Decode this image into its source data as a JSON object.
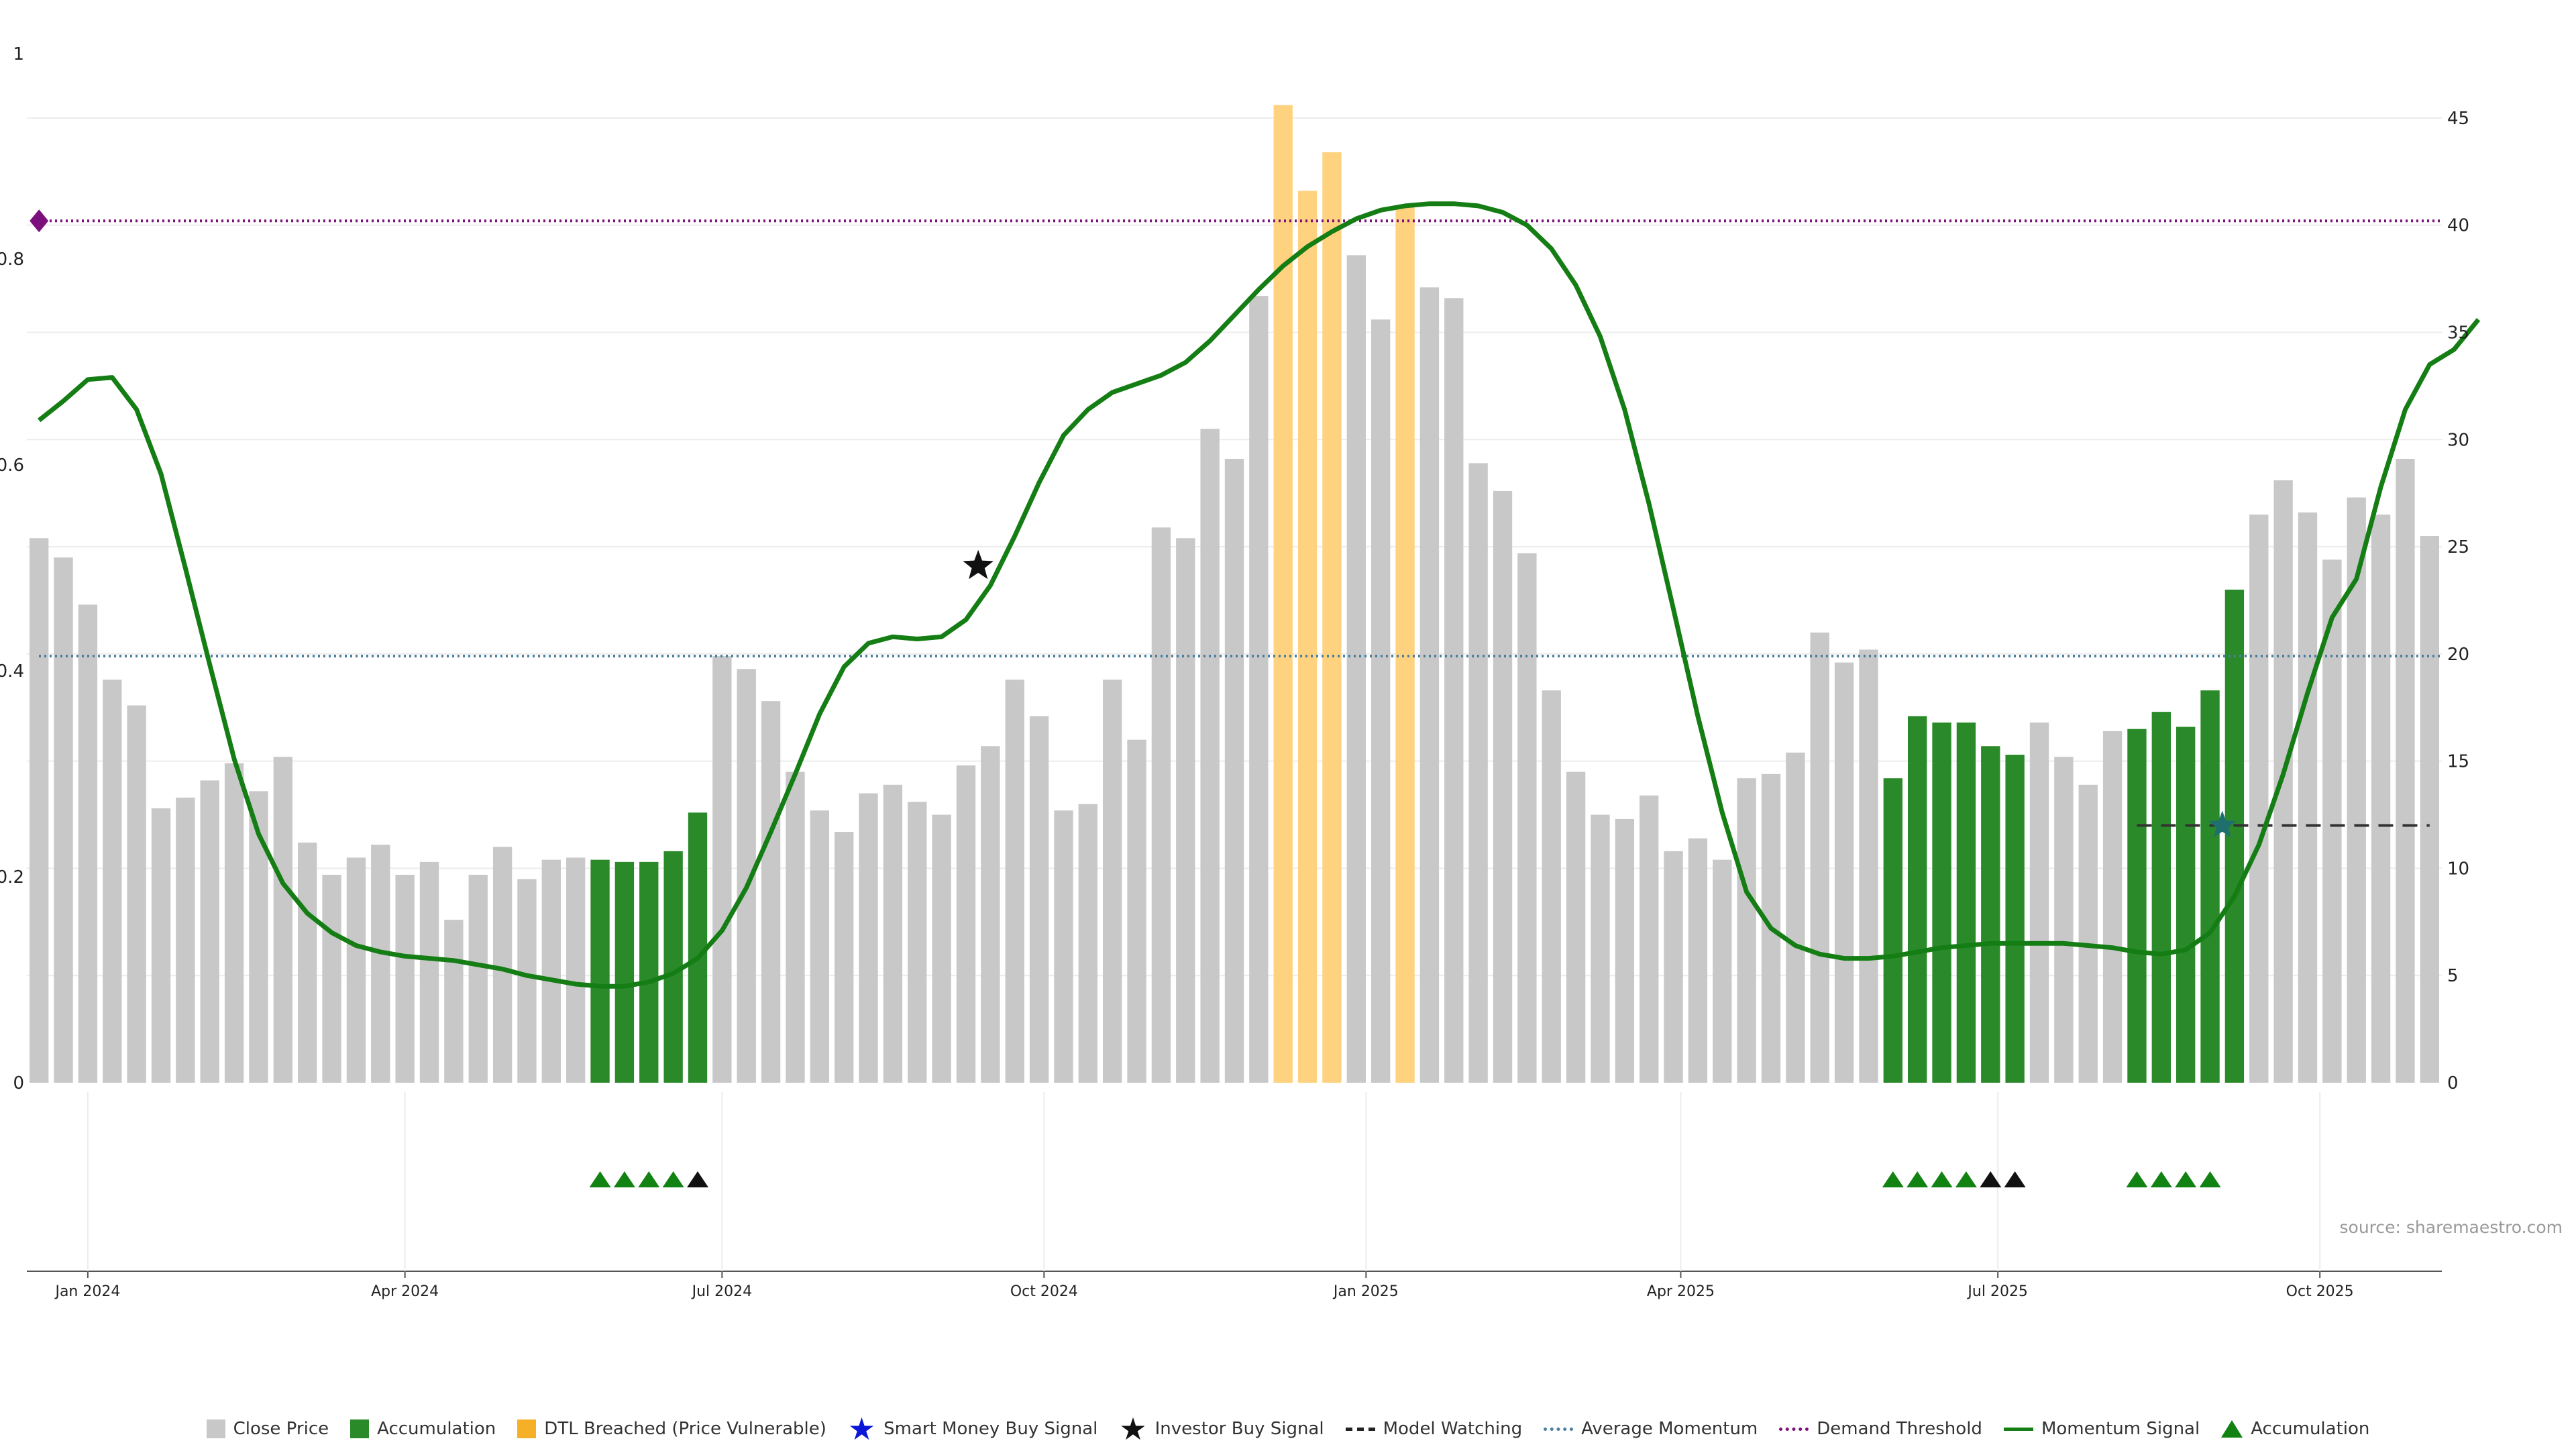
{
  "colors": {
    "close": "#c8c8c8",
    "accumulation": "#2a8a2a",
    "dtl": "#ffd27f",
    "momentum": "#147d14",
    "avg_momentum": "#4a7fa0",
    "demand": "#7b0f7b",
    "watch": "#333333",
    "tri_green": "#128212",
    "tri_black": "#111111"
  },
  "chart_data": {
    "type": "bar",
    "left_axis": {
      "ticks": [
        "0",
        "0.2",
        "0.4",
        "0.6",
        "0.8",
        "1"
      ],
      "ylim": [
        0,
        1
      ]
    },
    "right_axis": {
      "ticks": [
        "0",
        "5",
        "10",
        "15",
        "20",
        "25",
        "30",
        "35",
        "40",
        "45"
      ],
      "ylim": [
        0,
        48
      ]
    },
    "x_ticks": [
      {
        "label": "Jan 2024",
        "week": 2.5
      },
      {
        "label": "Apr 2024",
        "week": 15.5
      },
      {
        "label": "Jul 2024",
        "week": 28.5
      },
      {
        "label": "Oct 2024",
        "week": 41.7
      },
      {
        "label": "Jan 2025",
        "week": 54.9
      },
      {
        "label": "Apr 2025",
        "week": 67.8
      },
      {
        "label": "Jul 2025",
        "week": 80.8
      },
      {
        "label": "Oct 2025",
        "week": 94.0
      }
    ],
    "bars": {
      "values": [
        25.4,
        24.5,
        22.3,
        18.8,
        17.6,
        12.8,
        13.3,
        14.1,
        14.9,
        13.6,
        15.2,
        11.2,
        9.7,
        10.5,
        11.1,
        9.7,
        10.3,
        7.6,
        9.7,
        11.0,
        9.5,
        10.4,
        10.5,
        10.4,
        10.3,
        10.3,
        10.8,
        12.6,
        19.9,
        19.3,
        17.8,
        14.5,
        12.7,
        11.7,
        13.5,
        13.9,
        13.1,
        12.5,
        14.8,
        15.7,
        18.8,
        17.1,
        12.7,
        13.0,
        18.8,
        16.0,
        25.9,
        25.4,
        30.5,
        29.1,
        36.7,
        45.6,
        41.6,
        43.4,
        38.6,
        35.6,
        40.9,
        37.1,
        36.6,
        28.9,
        27.6,
        24.7,
        18.3,
        14.5,
        12.5,
        12.3,
        13.4,
        10.8,
        11.4,
        10.4,
        14.2,
        14.4,
        15.4,
        21.0,
        19.6,
        20.2,
        14.2,
        17.1,
        16.8,
        16.8,
        15.7,
        15.3,
        16.8,
        15.2,
        13.9,
        16.4,
        16.5,
        17.3,
        16.6,
        18.3,
        23.0,
        26.5,
        28.1,
        26.6,
        24.4,
        27.3,
        26.5,
        29.1,
        25.5
      ],
      "accumulation_index": [
        23,
        24,
        25,
        26,
        27,
        76,
        77,
        78,
        79,
        80,
        81,
        86,
        87,
        88,
        89,
        90
      ],
      "dtl_index": [
        51,
        52,
        53,
        56
      ]
    },
    "momentum_signal": [
      30.9,
      31.8,
      32.8,
      32.9,
      31.4,
      28.4,
      24.0,
      19.5,
      15.1,
      11.6,
      9.3,
      7.9,
      7.0,
      6.4,
      6.1,
      5.9,
      5.8,
      5.7,
      5.5,
      5.3,
      5.0,
      4.8,
      4.6,
      4.5,
      4.5,
      4.7,
      5.1,
      5.8,
      7.1,
      9.1,
      11.7,
      14.4,
      17.2,
      19.4,
      20.5,
      20.8,
      20.7,
      20.8,
      21.6,
      23.2,
      25.5,
      28.0,
      30.2,
      31.4,
      32.2,
      32.6,
      33.0,
      33.6,
      34.6,
      35.8,
      37.0,
      38.1,
      39.0,
      39.7,
      40.3,
      40.7,
      40.9,
      41.0,
      41.0,
      40.9,
      40.6,
      40.0,
      38.9,
      37.2,
      34.8,
      31.4,
      27.0,
      22.1,
      17.1,
      12.6,
      8.9,
      7.2,
      6.4,
      6.0,
      5.8,
      5.8,
      5.9,
      6.1,
      6.3,
      6.4,
      6.5,
      6.5,
      6.5,
      6.5,
      6.4,
      6.3,
      6.1,
      6.0,
      6.2,
      7.0,
      8.7,
      11.1,
      14.4,
      18.2,
      21.7,
      23.5,
      27.8,
      31.4,
      33.5,
      34.2,
      35.6
    ],
    "average_momentum": 19.9,
    "demand_threshold": 40.2,
    "model_watching": {
      "from": 86,
      "to": 98,
      "value": 12.0
    },
    "investor_buy_signal": {
      "x": 38.5,
      "y": 24.1
    },
    "teal_star": {
      "x": 89.5,
      "y": 12.0
    },
    "demand_marker": {
      "x": 0,
      "y": 40.2
    },
    "triangles": [
      {
        "x": 23,
        "kind": "green"
      },
      {
        "x": 24,
        "kind": "green"
      },
      {
        "x": 25,
        "kind": "green"
      },
      {
        "x": 26,
        "kind": "green"
      },
      {
        "x": 27,
        "kind": "black"
      },
      {
        "x": 76,
        "kind": "green"
      },
      {
        "x": 77,
        "kind": "green"
      },
      {
        "x": 78,
        "kind": "green"
      },
      {
        "x": 79,
        "kind": "green"
      },
      {
        "x": 80,
        "kind": "black"
      },
      {
        "x": 81,
        "kind": "black"
      },
      {
        "x": 86,
        "kind": "green"
      },
      {
        "x": 87,
        "kind": "green"
      },
      {
        "x": 88,
        "kind": "green"
      },
      {
        "x": 89,
        "kind": "green"
      }
    ]
  },
  "source_text": "source: sharemaestro.com",
  "legend": [
    {
      "label": "Close Price",
      "kind": "square",
      "color": "#c8c8c8"
    },
    {
      "label": "Accumulation",
      "kind": "square",
      "color": "#2a8a2a"
    },
    {
      "label": "DTL Breached (Price Vulnerable)",
      "kind": "square",
      "color": "#f5b027"
    },
    {
      "label": "Smart Money Buy Signal",
      "kind": "star",
      "color": "#0a16d8"
    },
    {
      "label": "Investor Buy Signal",
      "kind": "star",
      "color": "#111111"
    },
    {
      "label": "Model Watching",
      "kind": "dashed",
      "color": "#222222"
    },
    {
      "label": "Average Momentum",
      "kind": "dotted",
      "color": "#4a7fa0"
    },
    {
      "label": "Demand Threshold",
      "kind": "dotted",
      "color": "#7b0f7b"
    },
    {
      "label": "Momentum Signal",
      "kind": "solid",
      "color": "#147d14"
    },
    {
      "label": "Accumulation",
      "kind": "triangle",
      "color": "#128212"
    }
  ]
}
